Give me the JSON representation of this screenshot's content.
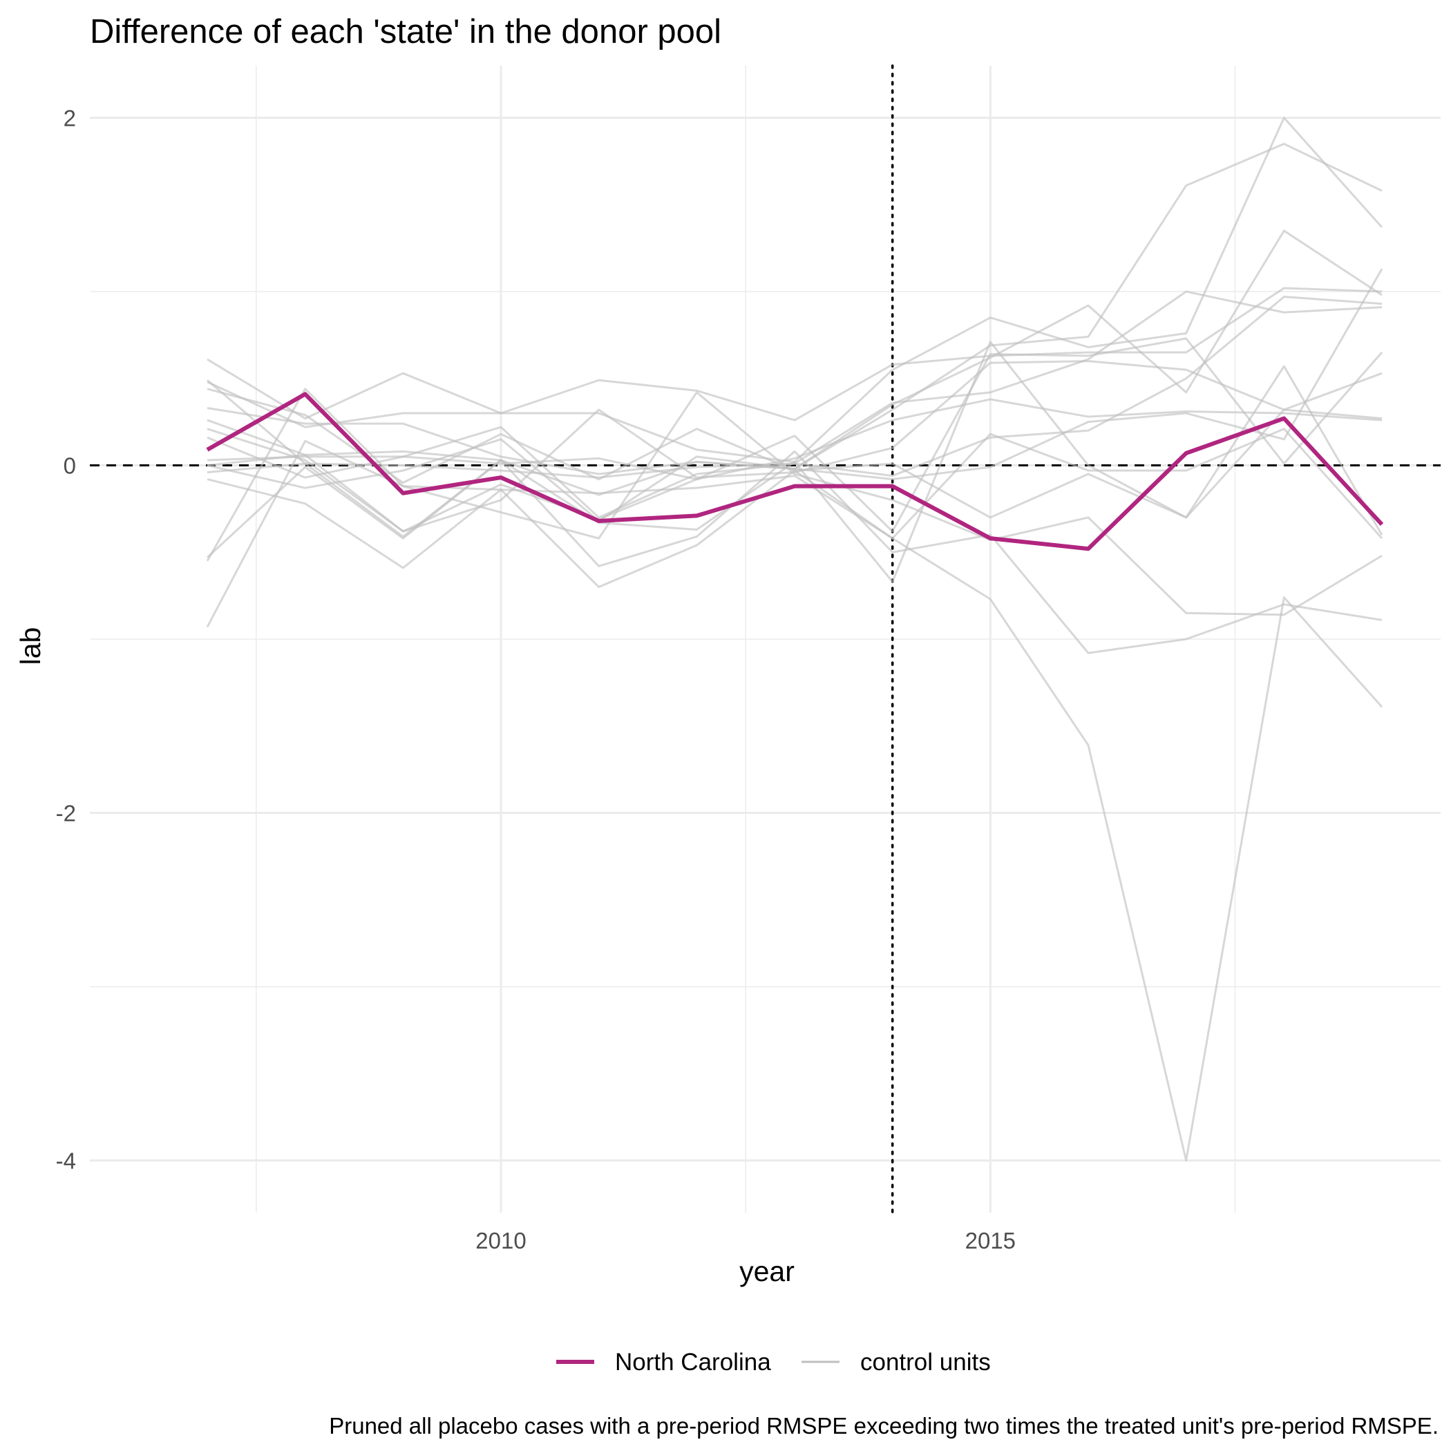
{
  "chart_data": {
    "type": "line",
    "title": "Difference of each 'state' in the donor pool",
    "xlabel": "year",
    "ylabel": "lab",
    "caption": "Pruned all placebo cases with a pre-period RMSPE exceeding two times the treated unit's pre-period RMSPE.",
    "xlim": [
      2005.8,
      2019.6
    ],
    "ylim": [
      -4.3,
      2.3
    ],
    "x_ticks": [
      2010,
      2015
    ],
    "x_tick_labels": [
      "2010",
      "2015"
    ],
    "y_ticks": [
      -4,
      -2,
      0,
      2
    ],
    "y_tick_labels": [
      "-4",
      "-2",
      "0",
      "2"
    ],
    "x_minor_gridlines": [
      2007.5,
      2012.5,
      2017.5
    ],
    "y_minor_gridlines": [
      -3,
      -1,
      1
    ],
    "grid": true,
    "reference_lines": {
      "horizontal_dashed_y": 0,
      "vertical_dotted_x": 2014
    },
    "legend": {
      "position": "bottom",
      "entries": [
        "North Carolina",
        "control units"
      ]
    },
    "colors": {
      "treated": "#B0257F",
      "control": "#BFBFBF",
      "gridline": "#EBEBEB"
    },
    "x": [
      2007,
      2008,
      2009,
      2010,
      2011,
      2012,
      2013,
      2014,
      2015,
      2016,
      2017,
      2018,
      2019
    ],
    "treated": {
      "name": "North Carolina",
      "values": [
        0.09,
        0.41,
        -0.16,
        -0.07,
        -0.32,
        -0.29,
        -0.12,
        -0.12,
        -0.42,
        -0.48,
        0.07,
        0.27,
        -0.34
      ]
    },
    "controls": [
      [
        0.61,
        0.27,
        0.53,
        0.3,
        0.49,
        0.43,
        0.26,
        0.58,
        0.63,
        0.65,
        0.65,
        1.02,
        1.0
      ],
      [
        0.48,
        0.22,
        0.3,
        0.3,
        0.3,
        0.09,
        0.02,
        0.55,
        0.85,
        0.68,
        0.76,
        2.0,
        1.37
      ],
      [
        0.33,
        0.24,
        0.24,
        0.05,
        -0.05,
        0.02,
        -0.02,
        0.35,
        0.62,
        0.92,
        0.42,
        1.35,
        0.98
      ],
      [
        0.26,
        0.06,
        -0.38,
        -0.2,
        0.32,
        -0.07,
        -0.04,
        0.1,
        0.59,
        0.6,
        0.55,
        0.32,
        0.27
      ],
      [
        0.21,
        0.03,
        -0.38,
        -0.11,
        -0.31,
        -0.08,
        0.04,
        0.26,
        0.38,
        0.28,
        0.31,
        0.3,
        0.26
      ],
      [
        0.16,
        -0.07,
        0.05,
        0.22,
        -0.3,
        -0.05,
        0.01,
        0.36,
        0.42,
        0.61,
        1.0,
        0.88,
        0.91
      ],
      [
        0.03,
        0.05,
        0.05,
        0.01,
        0.04,
        -0.08,
        0.17,
        -0.38,
        0.64,
        0.63,
        0.73,
        0.01,
        0.65
      ],
      [
        -0.04,
        0.01,
        0.0,
        -0.03,
        -0.07,
        -0.01,
        0.01,
        -0.06,
        0.16,
        0.2,
        0.5,
        0.97,
        0.93
      ],
      [
        0.49,
        0.01,
        -0.41,
        0.03,
        -0.33,
        -0.37,
        0.02,
        -0.67,
        0.71,
        0.0,
        -0.3,
        0.57,
        -0.4
      ],
      [
        -0.55,
        0.44,
        -0.12,
        -0.27,
        -0.42,
        0.42,
        -0.05,
        -0.2,
        -0.43,
        -0.3,
        -0.85,
        -0.86,
        -0.52
      ],
      [
        -0.08,
        -0.22,
        -0.59,
        -0.14,
        -0.16,
        -0.13,
        -0.06,
        -0.42,
        -0.77,
        -1.61,
        -4.0,
        -0.76,
        -1.39
      ],
      [
        0.0,
        0.06,
        0.08,
        0.03,
        -0.58,
        -0.41,
        0.08,
        -0.5,
        -0.4,
        -1.08,
        -1.0,
        -0.8,
        -0.89
      ],
      [
        -0.93,
        0.14,
        -0.12,
        -0.14,
        -0.7,
        -0.46,
        -0.03,
        -0.42,
        0.18,
        -0.03,
        -0.03,
        0.21,
        -0.42
      ],
      [
        0.44,
        0.29,
        -0.1,
        0.18,
        -0.08,
        0.21,
        -0.03,
        0.01,
        -0.3,
        -0.05,
        -0.3,
        0.32,
        0.53
      ],
      [
        0.0,
        -0.13,
        -0.03,
        0.15,
        -0.32,
        0.05,
        -0.02,
        0.32,
        0.69,
        0.74,
        1.61,
        1.85,
        1.58
      ],
      [
        -0.53,
        -0.01,
        -0.42,
        0.03,
        -0.17,
        0.02,
        -0.02,
        -0.08,
        -0.01,
        0.25,
        0.3,
        0.15,
        1.13
      ]
    ]
  }
}
